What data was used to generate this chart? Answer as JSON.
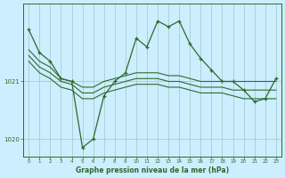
{
  "bg_color": "#cceeff",
  "line_color": "#2d6a2d",
  "grid_color": "#aacccc",
  "xlabel": "Graphe pression niveau de la mer (hPa)",
  "xlim": [
    -0.5,
    23.5
  ],
  "ylim": [
    1019.7,
    1022.35
  ],
  "yticks": [
    1020,
    1021
  ],
  "xticks": [
    0,
    1,
    2,
    3,
    4,
    5,
    6,
    7,
    8,
    9,
    10,
    11,
    12,
    13,
    14,
    15,
    16,
    17,
    18,
    19,
    20,
    21,
    22,
    23
  ],
  "line_main_x": [
    0,
    1,
    2,
    3,
    4,
    5,
    6,
    7,
    8,
    9,
    10,
    11,
    12,
    13,
    14,
    15,
    16,
    17,
    18,
    19,
    20,
    21,
    22,
    23
  ],
  "line_main_y": [
    1021.9,
    1021.5,
    1021.35,
    1021.05,
    1021.0,
    1019.85,
    1020.0,
    1020.75,
    1021.0,
    1021.15,
    1021.75,
    1021.6,
    1022.05,
    1021.95,
    1022.05,
    1021.65,
    1021.4,
    1021.2,
    1021.0,
    1021.0,
    1020.85,
    1020.65,
    1020.7,
    1021.05
  ],
  "line_env1_x": [
    0,
    1,
    2,
    3,
    4,
    5,
    6,
    7,
    8,
    9,
    10,
    11,
    12,
    13,
    14,
    15,
    16,
    17,
    18,
    19,
    20,
    21,
    22,
    23
  ],
  "line_env1_y": [
    1021.55,
    1021.35,
    1021.25,
    1021.05,
    1021.0,
    1020.9,
    1020.9,
    1021.0,
    1021.05,
    1021.1,
    1021.15,
    1021.15,
    1021.15,
    1021.1,
    1021.1,
    1021.05,
    1021.0,
    1021.0,
    1021.0,
    1021.0,
    1021.0,
    1021.0,
    1021.0,
    1021.0
  ],
  "line_env2_x": [
    0,
    1,
    2,
    3,
    4,
    5,
    6,
    7,
    8,
    9,
    10,
    11,
    12,
    13,
    14,
    15,
    16,
    17,
    18,
    19,
    20,
    21,
    22,
    23
  ],
  "line_env2_y": [
    1021.45,
    1021.25,
    1021.15,
    1021.0,
    1020.95,
    1020.8,
    1020.8,
    1020.9,
    1020.95,
    1021.0,
    1021.05,
    1021.05,
    1021.05,
    1021.0,
    1021.0,
    1020.95,
    1020.9,
    1020.9,
    1020.9,
    1020.85,
    1020.85,
    1020.85,
    1020.85,
    1020.85
  ],
  "line_env3_x": [
    0,
    1,
    2,
    3,
    4,
    5,
    6,
    7,
    8,
    9,
    10,
    11,
    12,
    13,
    14,
    15,
    16,
    17,
    18,
    19,
    20,
    21,
    22,
    23
  ],
  "line_env3_y": [
    1021.35,
    1021.15,
    1021.05,
    1020.9,
    1020.85,
    1020.7,
    1020.7,
    1020.8,
    1020.85,
    1020.9,
    1020.95,
    1020.95,
    1020.95,
    1020.9,
    1020.9,
    1020.85,
    1020.8,
    1020.8,
    1020.8,
    1020.75,
    1020.7,
    1020.7,
    1020.7,
    1020.7
  ]
}
